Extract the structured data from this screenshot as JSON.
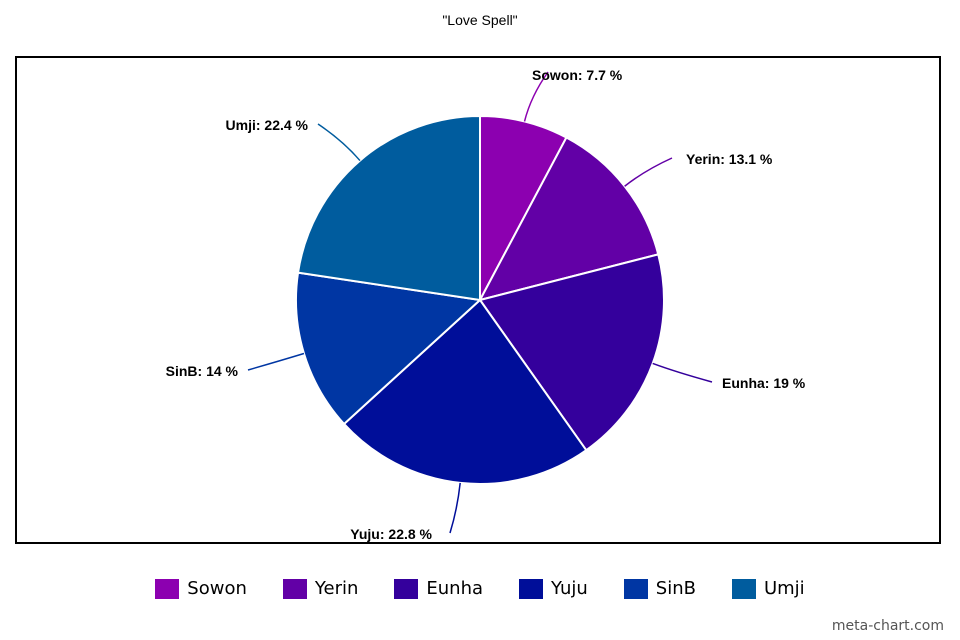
{
  "chart_data": {
    "type": "pie",
    "title": "\"Love Spell\"",
    "slices": [
      {
        "label": "Sowon",
        "value": 7.7,
        "text": "Sowon: 7.7 %",
        "color": "#8c00b0"
      },
      {
        "label": "Yerin",
        "value": 13.1,
        "text": "Yerin: 13.1 %",
        "color": "#6200a6"
      },
      {
        "label": "Eunha",
        "value": 19,
        "text": "Eunha: 19 %",
        "color": "#34009c"
      },
      {
        "label": "Yuju",
        "value": 22.8,
        "text": "Yuju: 22.8 %",
        "color": "#000e99"
      },
      {
        "label": "SinB",
        "value": 14,
        "text": "SinB: 14 %",
        "color": "#0036a3"
      },
      {
        "label": "Umji",
        "value": 22.4,
        "text": "Umji: 22.4 %",
        "color": "#005c9e"
      }
    ],
    "legend_position": "bottom"
  },
  "watermark": "meta-chart.com"
}
